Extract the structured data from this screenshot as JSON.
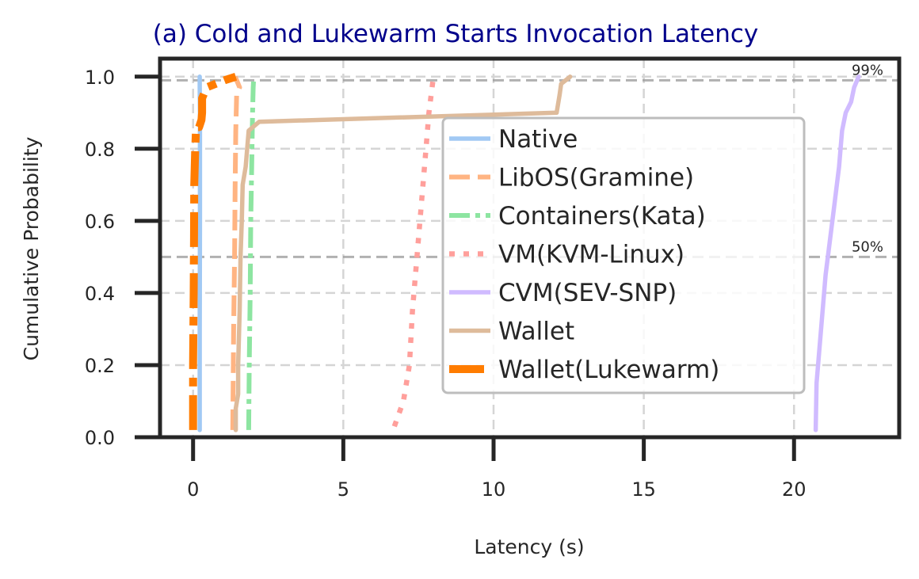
{
  "chart_data": {
    "type": "line",
    "title": "(a) Cold and Lukewarm Starts Invocation Latency",
    "xlabel": "Latency (s)",
    "ylabel": "Cumulative Probability",
    "xlim": [
      -1.1,
      23.5
    ],
    "ylim": [
      0.0,
      1.05
    ],
    "xticks": [
      0,
      5,
      10,
      15,
      20
    ],
    "yticks": [
      0.0,
      0.2,
      0.4,
      0.6,
      0.8,
      1.0
    ],
    "xtick_labels": [
      "0",
      "5",
      "10",
      "15",
      "20"
    ],
    "ytick_labels": [
      "0.0",
      "0.2",
      "0.4",
      "0.6",
      "0.8",
      "1.0"
    ],
    "grid": true,
    "legend_position": "center-right",
    "reference_lines": [
      {
        "y": 0.99,
        "label": "99%"
      },
      {
        "y": 0.5,
        "label": "50%"
      }
    ],
    "series": [
      {
        "name": "Native",
        "color": "#a1c9f4",
        "style": "solid",
        "x": [
          0.22,
          0.22,
          0.23,
          0.23,
          0.22,
          0.22
        ],
        "y": [
          0.02,
          0.3,
          0.6,
          0.9,
          0.97,
          1.0
        ]
      },
      {
        "name": "LibOS(Gramine)",
        "color": "#ffb482",
        "style": "dashed",
        "x": [
          1.32,
          1.35,
          1.38,
          1.4,
          1.42,
          1.45,
          1.55,
          1.4
        ],
        "y": [
          0.02,
          0.3,
          0.5,
          0.7,
          0.85,
          0.95,
          0.97,
          1.0
        ]
      },
      {
        "name": "Containers(Kata)",
        "color": "#8de5a1",
        "style": "dashdot",
        "x": [
          1.85,
          1.87,
          1.9,
          1.92,
          1.95,
          1.98,
          2.0,
          2.02
        ],
        "y": [
          0.02,
          0.2,
          0.4,
          0.6,
          0.75,
          0.9,
          0.97,
          1.0
        ]
      },
      {
        "name": "VM(KVM-Linux)",
        "color": "#ff9f9b",
        "style": "dotted",
        "x": [
          6.7,
          7.0,
          7.2,
          7.3,
          7.45,
          7.6,
          7.75,
          7.85,
          8.0
        ],
        "y": [
          0.03,
          0.1,
          0.2,
          0.35,
          0.5,
          0.65,
          0.8,
          0.9,
          1.0
        ]
      },
      {
        "name": "CVM(SEV-SNP)",
        "color": "#d0bbff",
        "style": "solid",
        "x": [
          20.72,
          20.75,
          20.9,
          21.05,
          21.2,
          21.35,
          21.5,
          21.6,
          21.72,
          21.9,
          22.0,
          22.15
        ],
        "y": [
          0.02,
          0.15,
          0.3,
          0.45,
          0.55,
          0.65,
          0.75,
          0.85,
          0.9,
          0.93,
          0.97,
          1.0
        ]
      },
      {
        "name": "Wallet",
        "color": "#debb9b",
        "style": "solid",
        "x": [
          1.42,
          1.42,
          1.5,
          1.5,
          1.55,
          1.58,
          1.62,
          1.65,
          1.75,
          1.8,
          1.85,
          2.2,
          12.1,
          12.2,
          12.25,
          12.55
        ],
        "y": [
          0.02,
          0.08,
          0.12,
          0.2,
          0.35,
          0.5,
          0.6,
          0.7,
          0.75,
          0.8,
          0.85,
          0.875,
          0.9,
          0.95,
          0.98,
          1.0
        ]
      },
      {
        "name": "Wallet(Lukewarm)",
        "color": "#ff7c00",
        "style": "dashdot_thick",
        "x": [
          0.0,
          0.0,
          0.02,
          0.03,
          0.04,
          0.07,
          0.1,
          0.2,
          0.28,
          0.3,
          0.3,
          0.45,
          1.05,
          1.42
        ],
        "y": [
          0.02,
          0.2,
          0.4,
          0.55,
          0.7,
          0.8,
          0.86,
          0.86,
          0.88,
          0.9,
          0.94,
          0.97,
          0.99,
          1.0
        ]
      }
    ]
  }
}
